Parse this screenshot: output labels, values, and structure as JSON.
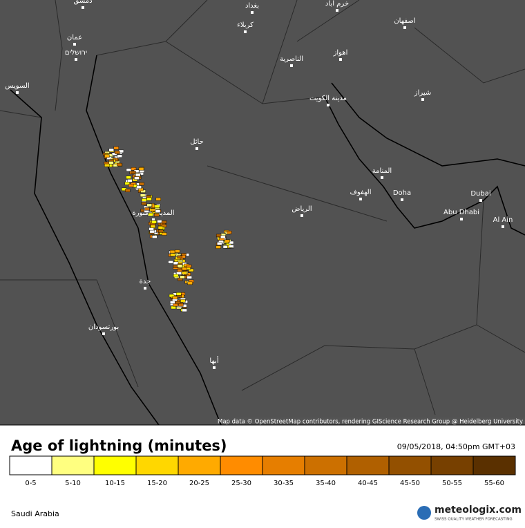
{
  "map": {
    "cities": [
      "دمشق",
      "بغداد",
      "خرم آباد",
      "كربلاء",
      "اصفهان",
      "عمان",
      "ירושלים",
      "اهواز",
      "الناصرية",
      "السويس",
      "مدينة الكويت",
      "شيراز",
      "حائل",
      "المنامة",
      "الهفوف",
      "Doha",
      "Dubai",
      "الرياض",
      "Abu Dhabi",
      "Al Ain",
      "المدينة المنورة",
      "جدة",
      "بورتسودان",
      "أبها"
    ],
    "attribution": "Map data © OpenStreetMap contributors, rendering GIScience Research Group @ Heidelberg University"
  },
  "legend": {
    "title": "Age of lightning (minutes)",
    "timestamp": "09/05/2018, 04:50pm GMT+03",
    "bins": [
      {
        "label": "0-5",
        "color": "#ffffff"
      },
      {
        "label": "5-10",
        "color": "#ffff80"
      },
      {
        "label": "10-15",
        "color": "#ffff00"
      },
      {
        "label": "15-20",
        "color": "#ffd700"
      },
      {
        "label": "20-25",
        "color": "#ffaa00"
      },
      {
        "label": "25-30",
        "color": "#ff8c00"
      },
      {
        "label": "30-35",
        "color": "#e67e00"
      },
      {
        "label": "35-40",
        "color": "#cc7000"
      },
      {
        "label": "40-45",
        "color": "#b06000"
      },
      {
        "label": "45-50",
        "color": "#935000"
      },
      {
        "label": "50-55",
        "color": "#774000"
      },
      {
        "label": "55-60",
        "color": "#5a3000"
      }
    ]
  },
  "footer": {
    "region": "Saudi Arabia",
    "logo": "meteologix.com",
    "tagline": "SWISS QUALITY WEATHER FORECASTING"
  }
}
